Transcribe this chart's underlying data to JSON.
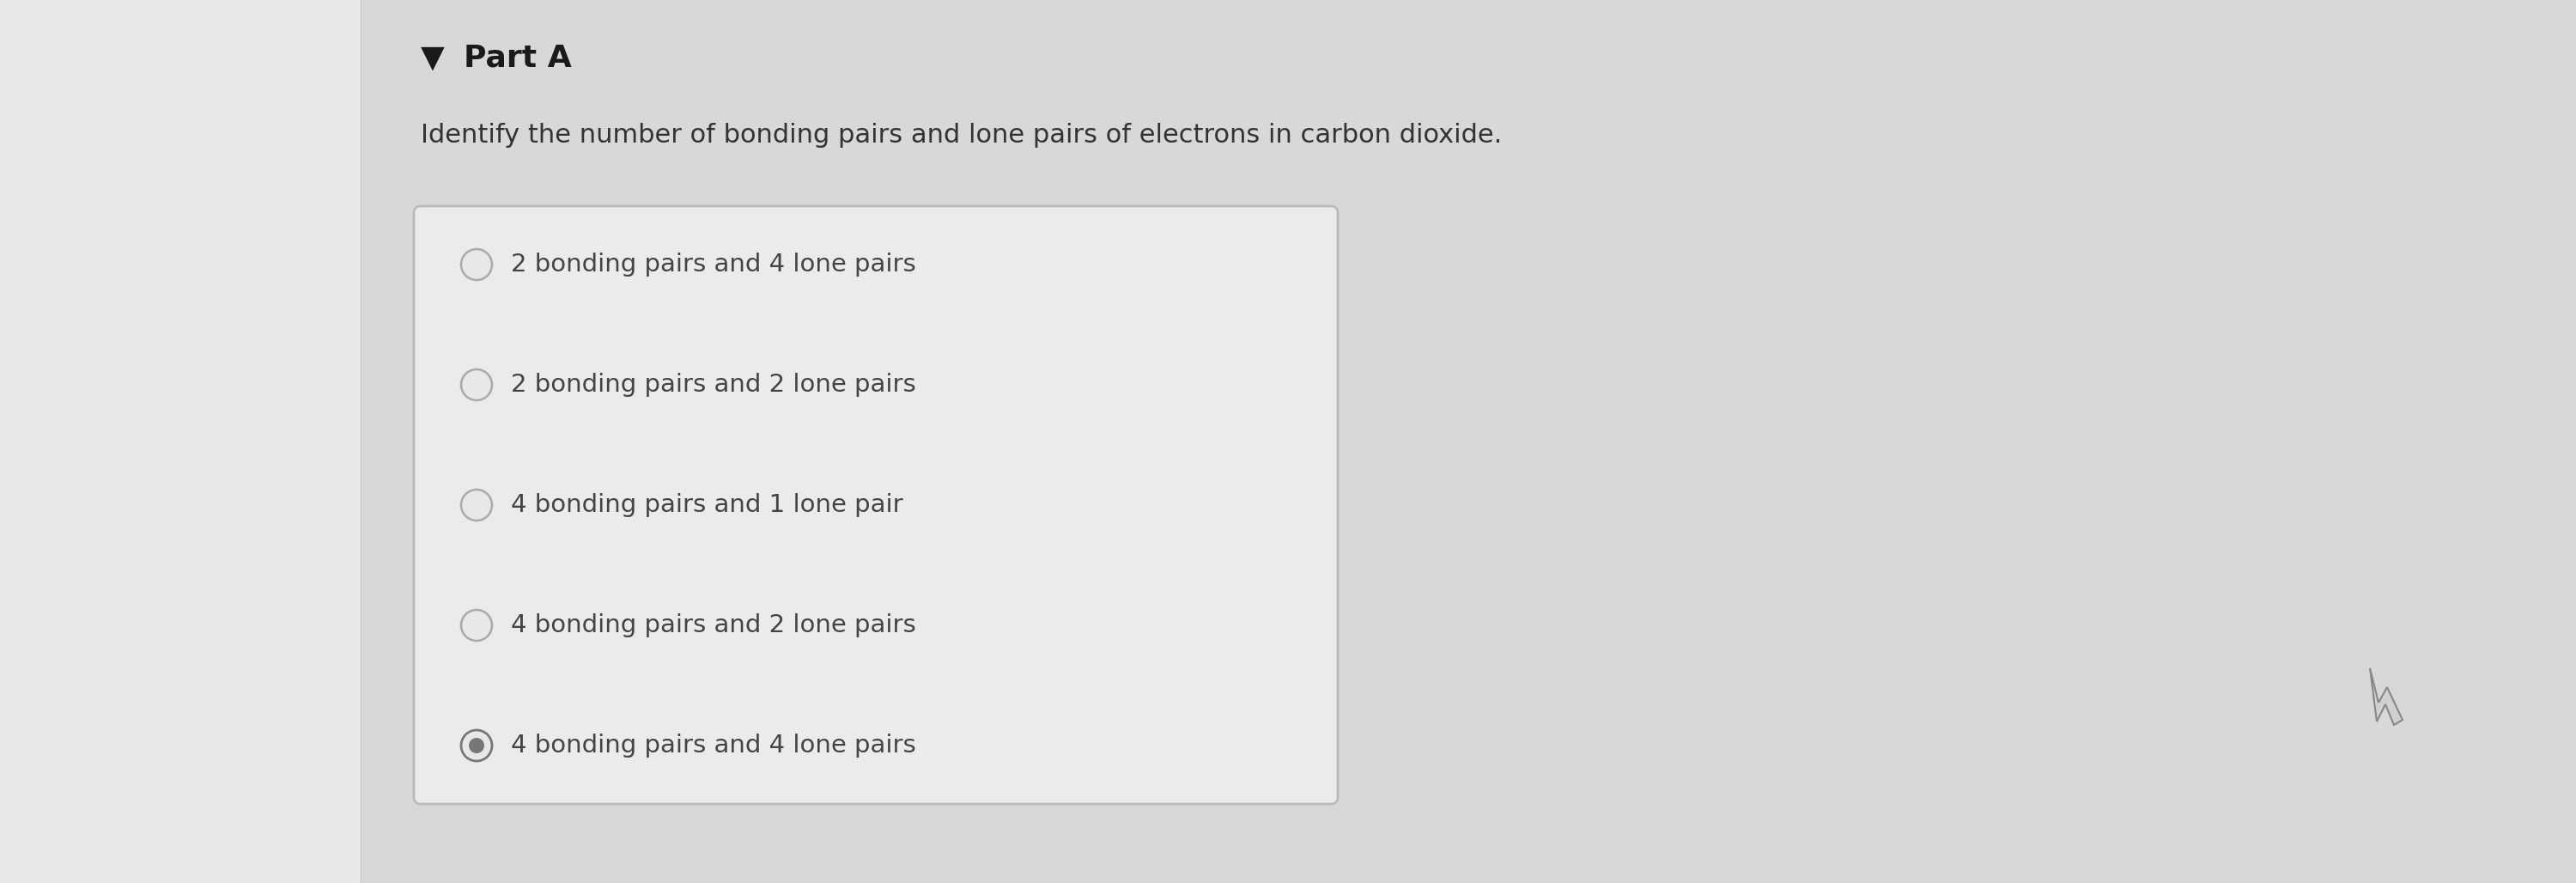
{
  "bg_color": "#d8d8d8",
  "left_panel_color": "#e0e0e0",
  "right_bg_color": "#d8d8d8",
  "part_label": "Part A",
  "triangle_char": "▼",
  "question": "Identify the number of bonding pairs and lone pairs of electrons in carbon dioxide.",
  "options": [
    "2 bonding pairs and 4 lone pairs",
    "2 bonding pairs and 2 lone pairs",
    "4 bonding pairs and 1 lone pair",
    "4 bonding pairs and 2 lone pairs",
    "4 bonding pairs and 4 lone pairs"
  ],
  "selected_index": 4,
  "font_size_part": 26,
  "font_size_question": 22,
  "font_size_options": 21,
  "part_color": "#1a1a1a",
  "question_color": "#333333",
  "text_color": "#444444",
  "box_facecolor": "#ebebeb",
  "box_edgecolor": "#bbbbbb",
  "radio_unselected_edge": "#aaaaaa",
  "radio_selected_edge": "#777777",
  "radio_selected_fill": "#777777",
  "radio_unselected_face": "#e8e8e8"
}
